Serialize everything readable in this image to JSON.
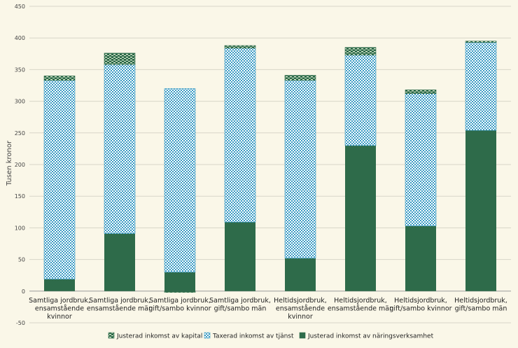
{
  "chart_data": {
    "type": "bar",
    "stacked": true,
    "title": "",
    "xlabel": "",
    "ylabel": "Tusen kronor",
    "ylim": [
      -50,
      450
    ],
    "yticks": [
      -50,
      0,
      50,
      100,
      150,
      200,
      250,
      300,
      350,
      400,
      450
    ],
    "grid": true,
    "legend_position": "bottom",
    "categories": [
      [
        "Samtliga jordbruk,",
        "ensamstående",
        "kvinnor"
      ],
      [
        "Samtliga jordbruk,",
        "ensamstående män"
      ],
      [
        "Samtliga jordbruk,",
        "gift/sambo kvinnor"
      ],
      [
        "Samtliga jordbruk,",
        "gift/sambo män"
      ],
      [
        "Heltidsjordbruk,",
        "ensamstående",
        "kvinnor"
      ],
      [
        "Heltidsjordbruk,",
        "ensamstående män"
      ],
      [
        "Heltidsjordbruk,",
        "gift/sambo kvinnor"
      ],
      [
        "Heltidsjordbruk,",
        "gift/sambo män"
      ]
    ],
    "series": [
      {
        "name": "Justerad inkomst av näringsverksamhet",
        "color": "#2e6b4a",
        "pattern": "solid",
        "values": [
          19,
          91,
          30,
          109,
          52,
          230,
          103,
          254
        ]
      },
      {
        "name": "Taxerad inkomst av tjänst",
        "color": "#3a9bc4",
        "pattern": "checker",
        "values": [
          314,
          267,
          290,
          275,
          281,
          143,
          209,
          139
        ]
      },
      {
        "name": "Justerad inkomst av kapital",
        "color": "#2e6b4a",
        "pattern": "dash",
        "values": [
          7,
          18,
          -2,
          4,
          8,
          12,
          6,
          2
        ]
      }
    ],
    "legend_order": [
      2,
      1,
      0
    ]
  }
}
